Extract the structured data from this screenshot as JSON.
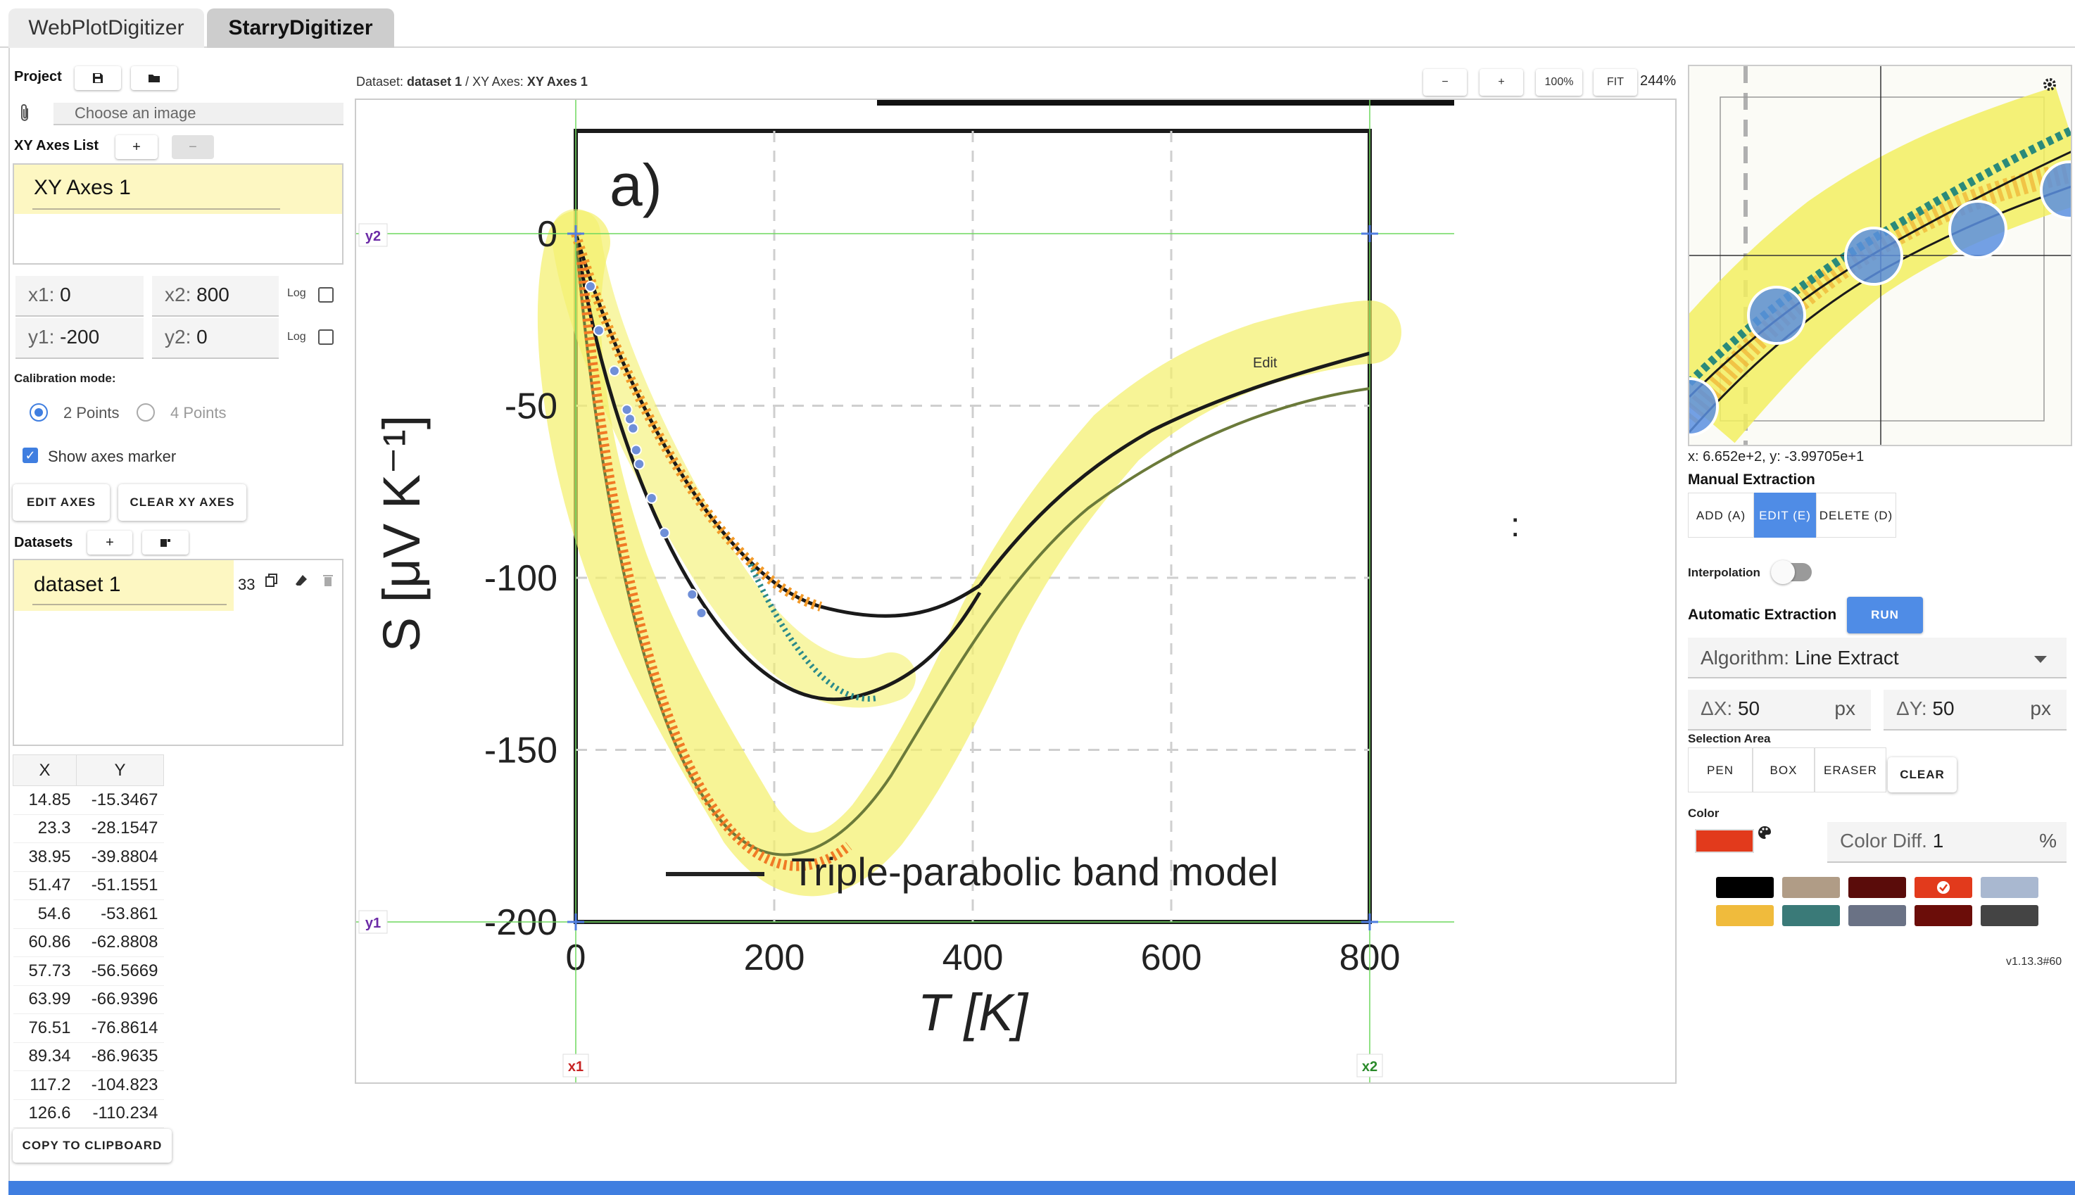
{
  "tabs": [
    {
      "label": "WebPlotDigitizer"
    },
    {
      "label": "StarryDigitizer"
    }
  ],
  "project": {
    "label": "Project",
    "save_icon": "save-icon",
    "open_icon": "folder-icon",
    "attach_icon": "paperclip-icon",
    "choose_image": "Choose an image"
  },
  "axes": {
    "list_label": "XY Axes List",
    "add": "+",
    "remove": "−",
    "items": [
      {
        "name": "XY Axes 1"
      }
    ],
    "x1_label": "x1:",
    "x1": "0",
    "x2_label": "x2:",
    "x2": "800",
    "y1_label": "y1:",
    "y1": "-200",
    "y2_label": "y2:",
    "y2": "0",
    "log_label": "Log",
    "calibration_label": "Calibration mode:",
    "mode_2": "2 Points",
    "mode_4": "4 Points",
    "show_marker": "Show axes marker",
    "edit_axes": "EDIT AXES",
    "clear_axes": "CLEAR XY AXES"
  },
  "datasets": {
    "label": "Datasets",
    "add": "+",
    "items": [
      {
        "name": "dataset 1",
        "count": "33"
      }
    ]
  },
  "table": {
    "headers": [
      "X",
      "Y"
    ],
    "rows": [
      [
        "14.85",
        "-15.3467"
      ],
      [
        "23.3",
        "-28.1547"
      ],
      [
        "38.95",
        "-39.8804"
      ],
      [
        "51.47",
        "-51.1551"
      ],
      [
        "54.6",
        "-53.861"
      ],
      [
        "60.86",
        "-62.8808"
      ],
      [
        "57.73",
        "-56.5669"
      ],
      [
        "63.99",
        "-66.9396"
      ],
      [
        "76.51",
        "-76.8614"
      ],
      [
        "89.34",
        "-86.9635"
      ],
      [
        "117.2",
        "-104.823"
      ],
      [
        "126.6",
        "-110.234"
      ]
    ],
    "copy": "COPY TO CLIPBOARD"
  },
  "canvas": {
    "breadcrumb_prefix": "Dataset: ",
    "dataset": "dataset 1",
    "breadcrumb_mid": " / XY Axes: ",
    "axes": "XY Axes 1",
    "zoom_out": "−",
    "zoom_in": "+",
    "zoom_100": "100%",
    "fit": "FIT",
    "zoom_level": "244%",
    "marker_x1": "x1",
    "marker_x2": "x2",
    "marker_y1": "y1",
    "marker_y2": "y2",
    "hover_label": "Edit"
  },
  "figure": {
    "panel_label": "a)",
    "ylabel": "S [μV K⁻¹]",
    "xlabel": "T [K]",
    "legend": "Triple-parabolic band model",
    "xticks": [
      "0",
      "200",
      "400",
      "600",
      "800"
    ],
    "yticks": [
      "0",
      "-50",
      "-100",
      "-150",
      "-200"
    ]
  },
  "right": {
    "settings_icon": "gear-icon",
    "coords": "x: 6.652e+2, y: -3.99705e+1",
    "manual_label": "Manual Extraction",
    "add": "ADD (A)",
    "edit": "EDIT (E)",
    "delete": "DELETE (D)",
    "interpolation": "Interpolation",
    "auto_label": "Automatic Extraction",
    "run": "RUN",
    "algorithm_label": "Algorithm:",
    "algorithm": "Line Extract",
    "dx_label": "ΔX:",
    "dx": "50",
    "dy_label": "ΔY:",
    "dy": "50",
    "px": "px",
    "selection_label": "Selection Area",
    "pen": "PEN",
    "box": "BOX",
    "eraser": "ERASER",
    "clear": "CLEAR",
    "color_label": "Color",
    "color_diff_label": "Color Diff.",
    "color_diff": "1",
    "percent": "%",
    "version": "v1.13.3#60",
    "swatches": [
      "#000000",
      "#b09c86",
      "#5a0c0a",
      "#e23a1c",
      "#a9b8d0",
      "#f0bb3c",
      "#3a7a78",
      "#6a7285",
      "#6b0d09",
      "#444444"
    ],
    "selected_color": "#e23a1c"
  }
}
